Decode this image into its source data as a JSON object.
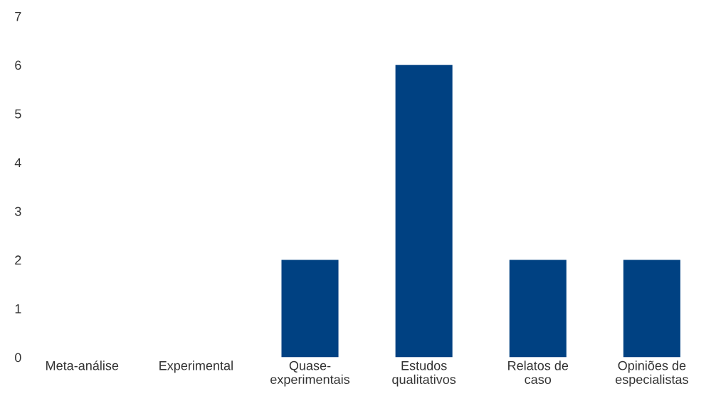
{
  "chart_data": {
    "type": "bar",
    "categories": [
      "Meta-análise",
      "Experimental",
      "Quase-\nexperimentais",
      "Estudos\nqualitativos",
      "Relatos de\ncaso",
      "Opiniões de\nespecialistas"
    ],
    "values": [
      0,
      0,
      2,
      6,
      2,
      2
    ],
    "color": "#004182",
    "ylim": [
      0,
      7
    ],
    "yticks": [
      0,
      1,
      2,
      3,
      4,
      5,
      6,
      7
    ],
    "grid": false
  }
}
